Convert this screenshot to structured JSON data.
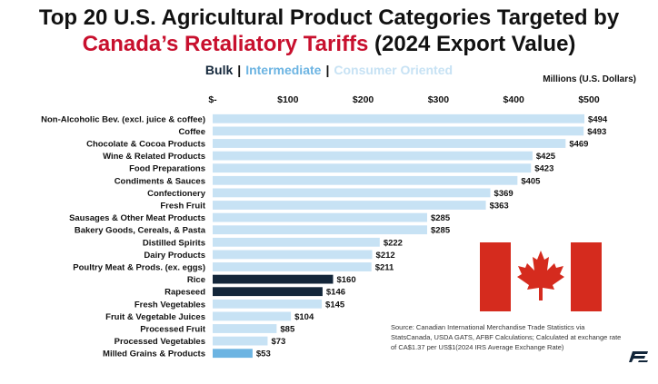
{
  "title": {
    "line1": "Top 20 U.S. Agricultural Product Categories Targeted by",
    "line2_red": "Canada’s Retaliatory Tariffs",
    "line2_rest": " (2024 Export Value)"
  },
  "legend": {
    "separator": "|",
    "items": [
      {
        "label": "Bulk",
        "color": "#13263a"
      },
      {
        "label": "Intermediate",
        "color": "#6cb4e2"
      },
      {
        "label": "Consumer Oriented",
        "color": "#c7e2f4"
      }
    ]
  },
  "units_label": "Millions (U.S. Dollars)",
  "source_note": "Source: Canadian International Merchandise Trade Statistics via StatsCanada, USDA GATS, AFBF Calculations; Calculated at exchange rate of CA$1.37 per US$1(2024 IRS Average Exchange Rate)",
  "colors": {
    "bulk": "#13263a",
    "intermediate": "#6cb4e2",
    "consumer": "#c7e2f4",
    "flag_red": "#d52b1e"
  },
  "chart_data": {
    "type": "bar",
    "orientation": "horizontal",
    "xlim": [
      0,
      500
    ],
    "ticks": [
      {
        "value": 0,
        "label": "$-"
      },
      {
        "value": 100,
        "label": "$100"
      },
      {
        "value": 200,
        "label": "$200"
      },
      {
        "value": 300,
        "label": "$300"
      },
      {
        "value": 400,
        "label": "$400"
      },
      {
        "value": 500,
        "label": "$500"
      }
    ],
    "grid": false,
    "categories": [
      "Non-Alcoholic Bev. (excl. juice & coffee)",
      "Coffee",
      "Chocolate & Cocoa Products",
      "Wine & Related Products",
      "Food Preparations",
      "Condiments & Sauces",
      "Confectionery",
      "Fresh Fruit",
      "Sausages & Other Meat Products",
      "Bakery Goods, Cereals, & Pasta",
      "Distilled Spirits",
      "Dairy Products",
      "Poultry Meat & Prods. (ex. eggs)",
      "Rice",
      "Rapeseed",
      "Fresh Vegetables",
      "Fruit & Vegetable Juices",
      "Processed Fruit",
      "Processed Vegetables",
      "Milled Grains & Products"
    ],
    "values": [
      494,
      493,
      469,
      425,
      423,
      405,
      369,
      363,
      285,
      285,
      222,
      212,
      211,
      160,
      146,
      145,
      104,
      85,
      73,
      53
    ],
    "value_labels": [
      "$494",
      "$493",
      "$469",
      "$425",
      "$423",
      "$405",
      "$369",
      "$363",
      "$285",
      "$285",
      "$222",
      "$212",
      "$211",
      "$160",
      "$146",
      "$145",
      "$104",
      "$85",
      "$73",
      "$53"
    ],
    "groups": [
      "consumer",
      "consumer",
      "consumer",
      "consumer",
      "consumer",
      "consumer",
      "consumer",
      "consumer",
      "consumer",
      "consumer",
      "consumer",
      "consumer",
      "consumer",
      "bulk",
      "bulk",
      "consumer",
      "consumer",
      "consumer",
      "consumer",
      "intermediate"
    ]
  }
}
